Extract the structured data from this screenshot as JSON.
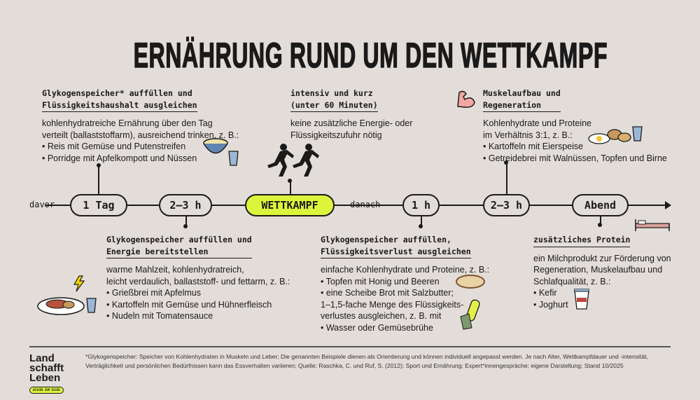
{
  "title": "ERNÄHRUNG RUND UM DEN WETTKAMPF",
  "timeline": {
    "before_label": "davor",
    "after_label": "danach",
    "points": [
      "1 Tag",
      "2–3 h",
      "WETTKAMPF",
      "1 h",
      "2–3 h",
      "Abend"
    ]
  },
  "blocks": [
    {
      "heading": [
        "Glykogenspeicher* auffüllen und",
        "Flüssigkeitshaushalt ausgleichen"
      ],
      "body": [
        "kohlenhydratreiche Ernährung über den Tag",
        "verteilt (ballaststoffarm), ausreichend trinken, z. B.:",
        "• Reis mit Gemüse und Putenstreifen",
        "• Porridge mit Apfelkompott und Nüssen"
      ]
    },
    {
      "heading": [
        "Glykogenspeicher auffüllen und",
        "Energie bereitstellen"
      ],
      "body": [
        "warme Mahlzeit, kohlenhydratreich,",
        "leicht verdaulich, ballaststoff- und fettarm, z. B.:",
        "• Grießbrei mit Apfelmus",
        "• Kartoffeln mit Gemüse und Hühnerfleisch",
        "• Nudeln mit Tomatensauce"
      ]
    },
    {
      "heading": [
        "intensiv und kurz",
        "(unter 60 Minuten)"
      ],
      "body": [
        "keine zusätzliche Energie- oder",
        "Flüssigkeitszufuhr nötig"
      ]
    },
    {
      "heading": [
        "Glykogenspeicher auffüllen,",
        "Flüssigkeitsverlust ausgleichen"
      ],
      "body": [
        "einfache Kohlenhydrate und Proteine, z. B.:",
        "• Topfen mit Honig und Beeren",
        "• eine Scheibe Brot mit Salzbutter;",
        "1–1,5-fache Menge des Flüssigkeits-",
        "verlustes ausgleichen, z. B. mit",
        "• Wasser oder Gemüsebrühe"
      ]
    },
    {
      "heading": [
        "Muskelaufbau und",
        "Regeneration"
      ],
      "body": [
        "Kohlenhydrate und Proteine",
        "im Verhältnis 3:1, z. B.:",
        "• Kartoffeln mit Eierspeise",
        "• Getreidebrei mit Walnüssen, Topfen und Birne"
      ]
    },
    {
      "heading": [
        "zusätzliches Protein"
      ],
      "body": [
        "ein Milchprodukt zur Förderung von",
        "Regeneration, Muskelaufbau und",
        "Schlafqualität, z. B.:",
        "• Kefir",
        "• Joghurt"
      ]
    }
  ],
  "footnote": [
    "*Glykogenspeicher: Speicher von Kohlenhydraten in Muskeln und Leber; Die genannten Beispiele dienen als Orientierung und können individuell angepasst werden. Je nach Alter, Wettkampfdauer und -intensität,",
    "Verträglichkeit und persönlichen Bedürfnissen kann das Essverhalten variieren; Quelle: Raschka, C. und Ruf, S. (2012): Sport und Ernährung; Expert*innengespräche; eigene Darstellung; Stand 10/2025"
  ],
  "logo": {
    "lines": [
      "Land",
      "schafft",
      "Leben"
    ],
    "tagline": "WISSEN ZUM ESSEN"
  },
  "colors": {
    "background": "#e3ddd9",
    "accent": "#dcf53c",
    "ink": "#1a1a1a"
  },
  "icons": [
    "rice-bowl-icon",
    "water-glass-icon",
    "runners-icon",
    "muscle-arm-icon",
    "potatoes-egg-icon",
    "plate-meal-icon",
    "lightning-icon",
    "bread-icon",
    "water-bottle-icon",
    "bed-icon",
    "yogurt-cup-icon"
  ]
}
